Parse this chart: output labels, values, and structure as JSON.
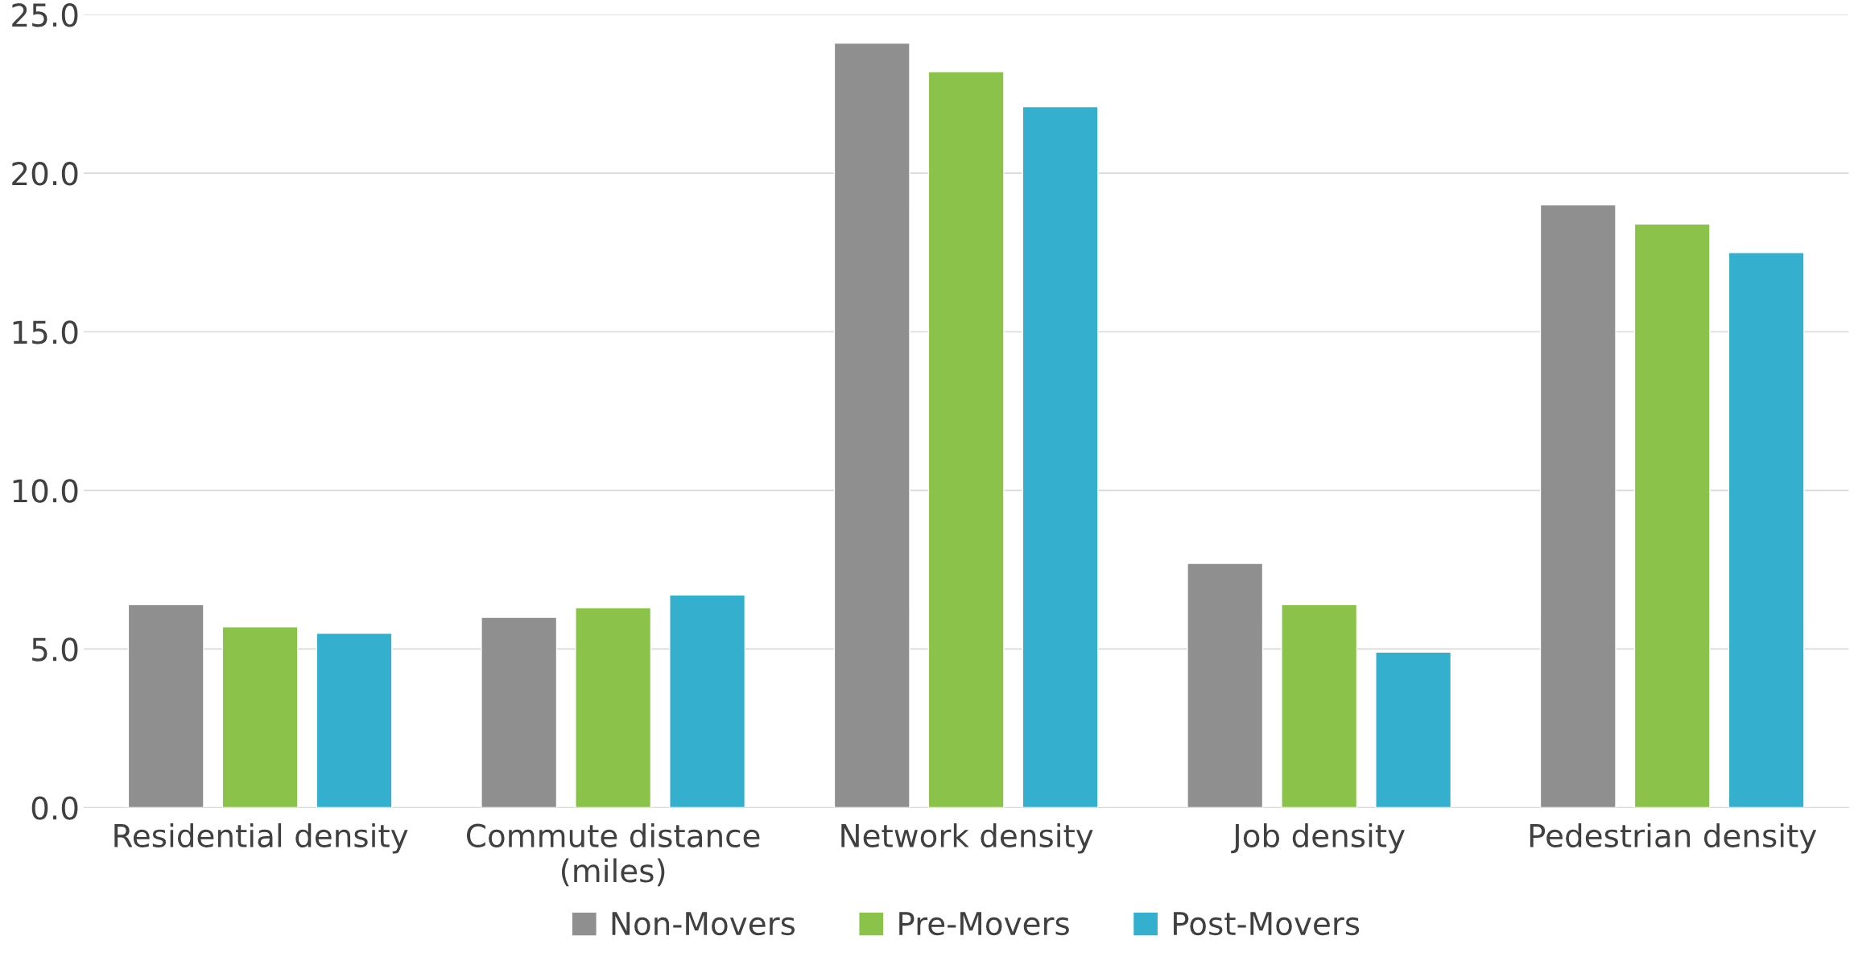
{
  "chart_data": {
    "type": "bar",
    "categories": [
      "Residential density",
      "Commute distance\n(miles)",
      "Network density",
      "Job density",
      "Pedestrian density"
    ],
    "series": [
      {
        "name": "Non-Movers",
        "color": "#8f8f8f",
        "values": [
          6.4,
          6.0,
          24.1,
          7.7,
          19.0
        ]
      },
      {
        "name": "Pre-Movers",
        "color": "#8bc249",
        "values": [
          5.7,
          6.3,
          23.2,
          6.4,
          18.4
        ]
      },
      {
        "name": "Post-Movers",
        "color": "#35afce",
        "values": [
          5.5,
          6.7,
          22.1,
          4.9,
          17.5
        ]
      }
    ],
    "ylim": [
      0,
      25
    ],
    "yticks": [
      {
        "value": 0,
        "label": "0.0"
      },
      {
        "value": 5,
        "label": "5.0"
      },
      {
        "value": 10,
        "label": "10.0"
      },
      {
        "value": 15,
        "label": "15.0"
      },
      {
        "value": 20,
        "label": "20.0"
      },
      {
        "value": 25,
        "label": "25.0"
      }
    ],
    "grid": "y",
    "legend": "bottom"
  }
}
